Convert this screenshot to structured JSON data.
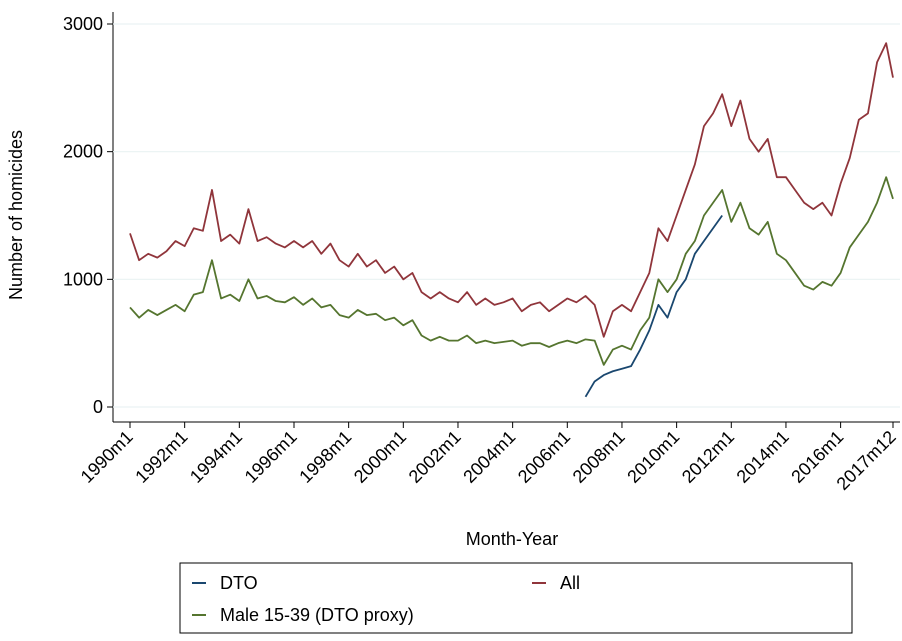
{
  "chart_data": {
    "type": "line",
    "y_label": "Number of homicides",
    "x_label": "Month-Year",
    "xlim": [
      "1990m1",
      "2017m12"
    ],
    "xticks": [
      "1990m1",
      "1992m1",
      "1994m1",
      "1996m1",
      "1998m1",
      "2000m1",
      "2002m1",
      "2004m1",
      "2006m1",
      "2008m1",
      "2010m1",
      "2012m1",
      "2014m1",
      "2016m1",
      "2017m12"
    ],
    "ylim": [
      0,
      3000
    ],
    "yticks": [
      0,
      1000,
      2000,
      3000
    ],
    "grid": true,
    "x": [
      "1990m1",
      "1990m5",
      "1990m9",
      "1991m1",
      "1991m5",
      "1991m9",
      "1992m1",
      "1992m5",
      "1992m9",
      "1993m1",
      "1993m5",
      "1993m9",
      "1994m1",
      "1994m5",
      "1994m9",
      "1995m1",
      "1995m5",
      "1995m9",
      "1996m1",
      "1996m5",
      "1996m9",
      "1997m1",
      "1997m5",
      "1997m9",
      "1998m1",
      "1998m5",
      "1998m9",
      "1999m1",
      "1999m5",
      "1999m9",
      "2000m1",
      "2000m5",
      "2000m9",
      "2001m1",
      "2001m5",
      "2001m9",
      "2002m1",
      "2002m5",
      "2002m9",
      "2003m1",
      "2003m5",
      "2003m9",
      "2004m1",
      "2004m5",
      "2004m9",
      "2005m1",
      "2005m5",
      "2005m9",
      "2006m1",
      "2006m5",
      "2006m9",
      "2007m1",
      "2007m5",
      "2007m9",
      "2008m1",
      "2008m5",
      "2008m9",
      "2009m1",
      "2009m5",
      "2009m9",
      "2010m1",
      "2010m5",
      "2010m9",
      "2011m1",
      "2011m5",
      "2011m9",
      "2012m1",
      "2012m5",
      "2012m9",
      "2013m1",
      "2013m5",
      "2013m9",
      "2014m1",
      "2014m5",
      "2014m9",
      "2015m1",
      "2015m5",
      "2015m9",
      "2016m1",
      "2016m5",
      "2016m9",
      "2017m1",
      "2017m5",
      "2017m9",
      "2017m12"
    ],
    "series": [
      {
        "name": "DTO",
        "color": "#1a476f",
        "values": [
          null,
          null,
          null,
          null,
          null,
          null,
          null,
          null,
          null,
          null,
          null,
          null,
          null,
          null,
          null,
          null,
          null,
          null,
          null,
          null,
          null,
          null,
          null,
          null,
          null,
          null,
          null,
          null,
          null,
          null,
          null,
          null,
          null,
          null,
          null,
          null,
          null,
          null,
          null,
          null,
          null,
          null,
          null,
          null,
          null,
          null,
          null,
          null,
          null,
          null,
          80,
          200,
          250,
          280,
          300,
          320,
          450,
          600,
          800,
          700,
          900,
          1000,
          1200,
          1300,
          1400,
          1500,
          null,
          null,
          null,
          null,
          null,
          null,
          null,
          null,
          null,
          null,
          null,
          null,
          null,
          null,
          null,
          null,
          null,
          null,
          null
        ]
      },
      {
        "name": "All",
        "color": "#90353b",
        "values": [
          1360,
          1150,
          1200,
          1170,
          1220,
          1300,
          1260,
          1400,
          1380,
          1700,
          1300,
          1350,
          1280,
          1550,
          1300,
          1330,
          1280,
          1250,
          1300,
          1250,
          1300,
          1200,
          1280,
          1150,
          1100,
          1200,
          1100,
          1150,
          1050,
          1100,
          1000,
          1050,
          900,
          850,
          900,
          850,
          820,
          900,
          800,
          850,
          800,
          820,
          850,
          750,
          800,
          820,
          750,
          800,
          850,
          820,
          870,
          800,
          550,
          750,
          800,
          750,
          900,
          1050,
          1400,
          1300,
          1500,
          1700,
          1900,
          2200,
          2300,
          2450,
          2200,
          2400,
          2100,
          2000,
          2100,
          1800,
          1800,
          1700,
          1600,
          1550,
          1600,
          1500,
          1750,
          1950,
          2250,
          2300,
          2700,
          2850,
          2580
        ]
      },
      {
        "name": "Male 15-39 (DTO proxy)",
        "color": "#55752f",
        "values": [
          780,
          700,
          760,
          720,
          760,
          800,
          750,
          880,
          900,
          1150,
          850,
          880,
          830,
          1000,
          850,
          870,
          830,
          820,
          860,
          800,
          850,
          780,
          800,
          720,
          700,
          760,
          720,
          730,
          680,
          700,
          640,
          680,
          560,
          520,
          550,
          520,
          520,
          560,
          500,
          520,
          500,
          510,
          520,
          480,
          500,
          500,
          470,
          500,
          520,
          500,
          530,
          520,
          330,
          450,
          480,
          450,
          600,
          700,
          1000,
          900,
          1000,
          1200,
          1300,
          1500,
          1600,
          1700,
          1450,
          1600,
          1400,
          1350,
          1450,
          1200,
          1150,
          1050,
          950,
          920,
          980,
          950,
          1050,
          1250,
          1350,
          1450,
          1600,
          1800,
          1630
        ]
      }
    ]
  }
}
